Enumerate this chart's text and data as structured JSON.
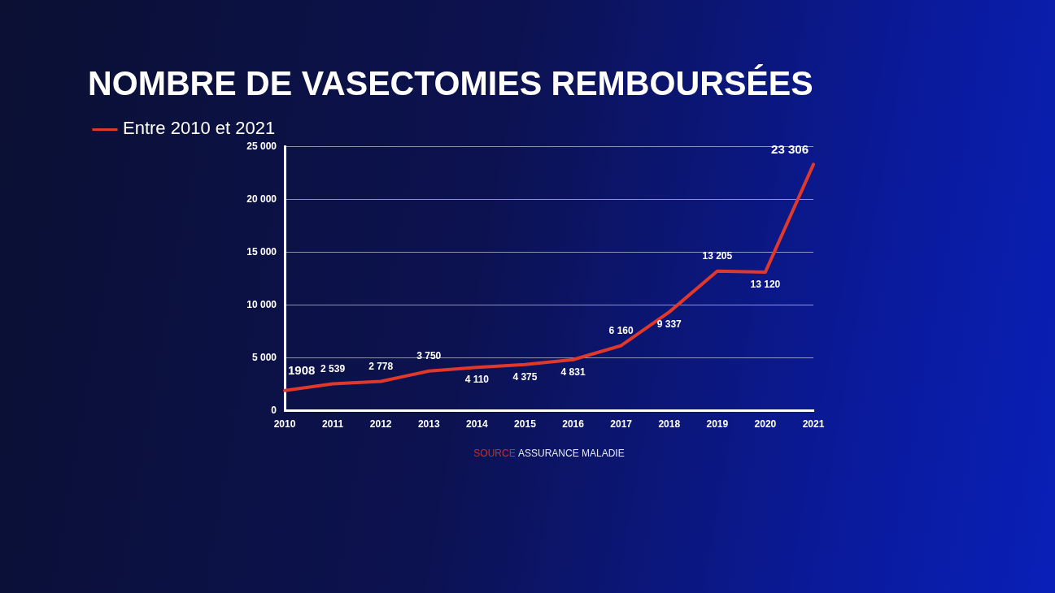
{
  "chart_data": {
    "type": "line",
    "title": "NOMBRE DE VASECTOMIES REMBOURSÉES",
    "categories": [
      "2010",
      "2011",
      "2012",
      "2013",
      "2014",
      "2015",
      "2016",
      "2017",
      "2018",
      "2019",
      "2020",
      "2021"
    ],
    "series": [
      {
        "name": "Entre 2010 et 2021",
        "color": "#e0392b",
        "values": [
          1908,
          2539,
          2778,
          3750,
          4110,
          4375,
          4831,
          6160,
          9337,
          13205,
          13120,
          23306
        ],
        "value_labels": [
          "1908",
          "2 539",
          "2 778",
          "3 750",
          "4 110",
          "4 375",
          "4 831",
          "6 160",
          "9 337",
          "13 205",
          "13 120",
          "23 306"
        ]
      }
    ],
    "ylim": [
      0,
      25000
    ],
    "yticks": [
      {
        "value": 0,
        "label": "0"
      },
      {
        "value": 5000,
        "label": "5 000"
      },
      {
        "value": 10000,
        "label": "10 000"
      },
      {
        "value": 15000,
        "label": "15 000"
      },
      {
        "value": 20000,
        "label": "20 000"
      },
      {
        "value": 25000,
        "label": "25 000"
      }
    ],
    "grid": "y",
    "legend": "top left",
    "marker": "none",
    "line_style": "solid",
    "annotations": [
      "SOURCE ASSURANCE MALADIE"
    ]
  }
}
